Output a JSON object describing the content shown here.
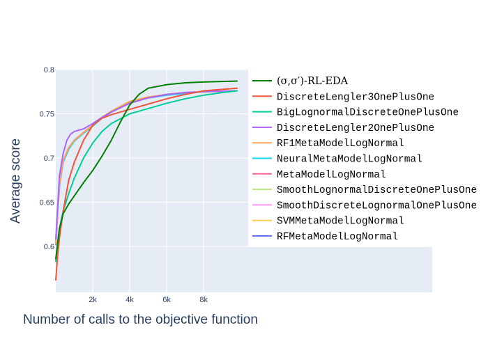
{
  "chart_data": {
    "type": "line",
    "title": "",
    "xlabel": "Number of calls to the objective function",
    "ylabel": "Average score",
    "xlim": [
      0,
      9800
    ],
    "ylim": [
      0.548,
      0.8
    ],
    "x_ticks": [
      2000,
      4000,
      6000,
      8000
    ],
    "x_tick_labels": [
      "2k",
      "4k",
      "6k",
      "8k"
    ],
    "y_ticks": [
      0.6,
      0.65,
      0.7,
      0.75,
      0.8
    ],
    "y_tick_labels": [
      "0.6",
      "0.65",
      "0.7",
      "0.75",
      "0.8"
    ],
    "grid": true,
    "legend_position": "right",
    "series": [
      {
        "name": "(σ,σ′)-RL-EDA",
        "color": "#008000",
        "x": [
          0,
          200,
          400,
          700,
          1000,
          1500,
          2000,
          2500,
          3000,
          3500,
          4000,
          4500,
          5000,
          6000,
          7000,
          8000,
          9800
        ],
        "y": [
          0.586,
          0.62,
          0.637,
          0.648,
          0.657,
          0.672,
          0.686,
          0.702,
          0.72,
          0.741,
          0.76,
          0.772,
          0.779,
          0.783,
          0.785,
          0.786,
          0.787
        ]
      },
      {
        "name": "DiscreteLengler3OnePlusOne",
        "color": "#EF553B",
        "x": [
          0,
          100,
          200,
          400,
          700,
          1000,
          1500,
          2000,
          2500,
          3000,
          4000,
          5000,
          6000,
          7000,
          8000,
          9800
        ],
        "y": [
          0.562,
          0.59,
          0.61,
          0.64,
          0.675,
          0.695,
          0.72,
          0.737,
          0.745,
          0.749,
          0.755,
          0.761,
          0.767,
          0.772,
          0.776,
          0.779
        ]
      },
      {
        "name": "BigLognormalDiscreteOnePlusOne",
        "color": "#00CC96",
        "x": [
          0,
          100,
          200,
          400,
          700,
          1000,
          1500,
          2000,
          2500,
          3000,
          4000,
          5000,
          6000,
          7000,
          8000,
          9000,
          9800
        ],
        "y": [
          0.583,
          0.605,
          0.62,
          0.64,
          0.66,
          0.677,
          0.7,
          0.717,
          0.73,
          0.739,
          0.75,
          0.756,
          0.762,
          0.767,
          0.771,
          0.774,
          0.776
        ]
      },
      {
        "name": "DiscreteLengler2OnePlusOne",
        "color": "#AB63FA",
        "x": [
          0,
          100,
          200,
          400,
          600,
          800,
          1000,
          1500,
          2000,
          2500,
          3000,
          4000,
          5000,
          6000,
          7000,
          8000,
          9800
        ],
        "y": [
          0.608,
          0.645,
          0.68,
          0.705,
          0.72,
          0.727,
          0.73,
          0.733,
          0.739,
          0.746,
          0.752,
          0.762,
          0.768,
          0.772,
          0.774,
          0.775,
          0.776
        ]
      },
      {
        "name": "RF1MetaModelLogNormal",
        "color": "#FFA15A",
        "x": [
          0,
          100,
          200,
          400,
          700,
          1000,
          1500,
          2000,
          2500,
          3000,
          4000,
          5000,
          6000,
          7000,
          8000,
          9800
        ],
        "y": [
          0.603,
          0.64,
          0.67,
          0.697,
          0.712,
          0.72,
          0.729,
          0.737,
          0.746,
          0.753,
          0.764,
          0.769,
          0.772,
          0.774,
          0.775,
          0.776
        ]
      },
      {
        "name": "NeuralMetaModelLogNormal",
        "color": "#19D3F3",
        "x": [
          0,
          100,
          200,
          400,
          700,
          1000,
          1500,
          2000,
          2500,
          3000,
          4000,
          5000,
          6000,
          7000,
          8000,
          9800
        ],
        "y": [
          0.602,
          0.638,
          0.668,
          0.695,
          0.71,
          0.719,
          0.728,
          0.736,
          0.745,
          0.752,
          0.762,
          0.768,
          0.771,
          0.773,
          0.775,
          0.776
        ]
      },
      {
        "name": "MetaModelLogNormal",
        "color": "#FF6692",
        "x": [
          0,
          100,
          200,
          400,
          700,
          1000,
          1500,
          2000,
          2500,
          3000,
          4000,
          5000,
          6000,
          7000,
          8000,
          9800
        ],
        "y": [
          0.602,
          0.639,
          0.669,
          0.696,
          0.711,
          0.72,
          0.729,
          0.737,
          0.745,
          0.752,
          0.763,
          0.768,
          0.772,
          0.774,
          0.775,
          0.776
        ]
      },
      {
        "name": "SmoothLognormalDiscreteOnePlusOne",
        "color": "#B6E880",
        "x": [
          0,
          100,
          200,
          400,
          700,
          1000,
          1500,
          2000,
          2500,
          3000,
          4000,
          5000,
          6000,
          7000,
          8000,
          9800
        ],
        "y": [
          0.603,
          0.64,
          0.67,
          0.697,
          0.712,
          0.72,
          0.729,
          0.737,
          0.746,
          0.752,
          0.763,
          0.768,
          0.772,
          0.774,
          0.775,
          0.776
        ]
      },
      {
        "name": "SmoothDiscreteLognormalOnePlusOne",
        "color": "#FF97FF",
        "x": [
          0,
          100,
          200,
          400,
          700,
          1000,
          1500,
          2000,
          2500,
          3000,
          4000,
          5000,
          6000,
          7000,
          8000,
          9800
        ],
        "y": [
          0.602,
          0.64,
          0.669,
          0.696,
          0.711,
          0.72,
          0.729,
          0.737,
          0.745,
          0.752,
          0.763,
          0.768,
          0.772,
          0.774,
          0.775,
          0.776
        ]
      },
      {
        "name": "SVMMetaModelLogNormal",
        "color": "#FECB52",
        "x": [
          0,
          100,
          200,
          400,
          700,
          1000,
          1500,
          2000,
          2500,
          3000,
          4000,
          5000,
          6000,
          7000,
          8000,
          9800
        ],
        "y": [
          0.603,
          0.64,
          0.67,
          0.697,
          0.712,
          0.72,
          0.729,
          0.737,
          0.746,
          0.753,
          0.764,
          0.769,
          0.772,
          0.774,
          0.775,
          0.776
        ]
      },
      {
        "name": "RFMetaModelLogNormal",
        "color": "#636EFA",
        "x": [
          0,
          100,
          200,
          400,
          700,
          1000,
          1500,
          2000,
          2500,
          3000,
          4000,
          5000,
          6000,
          7000,
          8000,
          9800
        ],
        "y": [
          0.602,
          0.639,
          0.669,
          0.696,
          0.711,
          0.72,
          0.729,
          0.737,
          0.745,
          0.752,
          0.762,
          0.768,
          0.771,
          0.774,
          0.775,
          0.776
        ]
      }
    ]
  }
}
